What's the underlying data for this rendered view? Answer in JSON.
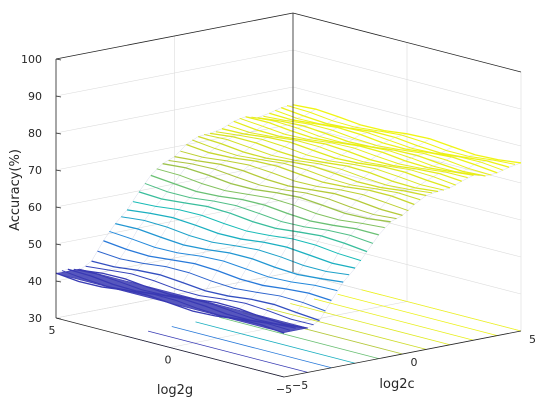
{
  "chart_data": {
    "type": "surface3d",
    "title": "",
    "xlabel": "log2c",
    "ylabel": "log2g",
    "zlabel": "Accuracy(%)",
    "x_ticks": [
      "−5",
      "0",
      "5"
    ],
    "y_ticks": [
      "5",
      "0",
      "−5"
    ],
    "z_ticks": [
      "30",
      "40",
      "50",
      "60",
      "70",
      "80",
      "90",
      "100"
    ],
    "xlim": [
      -5,
      5
    ],
    "ylim": [
      -5,
      5
    ],
    "zlim": [
      30,
      100
    ],
    "grid": true,
    "colormap": "parula",
    "surface": {
      "note_columns": "one accuracy profile along log2c, roughly constant across log2g",
      "log2c": [
        -5,
        -4.5,
        -4,
        -3.5,
        -3,
        -2.5,
        -2,
        -1.5,
        -1,
        -0.5,
        0,
        0.5,
        1,
        1.5,
        2,
        2.5,
        3,
        3.5,
        4,
        4.5,
        5
      ],
      "accuracy": [
        42,
        42,
        42,
        44,
        48,
        52,
        56,
        60,
        63,
        66,
        68,
        70,
        71,
        72,
        73,
        73.5,
        74,
        74,
        74.5,
        74.5,
        75
      ]
    }
  }
}
